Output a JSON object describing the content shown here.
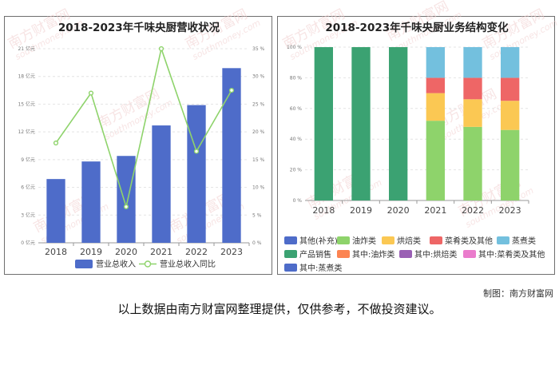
{
  "watermark": {
    "site_name": "南方财富网",
    "url": "southmoney.com"
  },
  "chart_data": [
    {
      "type": "bar+line",
      "title": "2018-2023年千味央厨营收状况",
      "categories": [
        "2018",
        "2019",
        "2020",
        "2021",
        "2022",
        "2023"
      ],
      "series": [
        {
          "name": "营业总收入",
          "kind": "bar",
          "axis": "left",
          "color": "#4e6cc9",
          "values": [
            6.9,
            8.8,
            9.4,
            12.7,
            14.9,
            18.9
          ]
        },
        {
          "name": "营业总收入同比",
          "kind": "line",
          "axis": "right",
          "color": "#8ed36b",
          "values": [
            18.0,
            27.0,
            6.5,
            35.0,
            16.5,
            27.5
          ]
        }
      ],
      "left_axis": {
        "ticks": [
          "0 亿元",
          "3 亿元",
          "6 亿元",
          "9 亿元",
          "12 亿元",
          "15 亿元",
          "18 亿元",
          "21 亿元"
        ],
        "ylim": [
          0,
          21
        ]
      },
      "right_axis": {
        "ticks": [
          "0 %",
          "5 %",
          "10 %",
          "15 %",
          "20 %",
          "25 %",
          "30 %",
          "35 %"
        ],
        "ylim": [
          0,
          35
        ]
      },
      "legend_position": "bottom"
    },
    {
      "type": "stacked-bar",
      "title": "2018-2023年千味央厨业务结构变化",
      "categories": [
        "2018",
        "2019",
        "2020",
        "2021",
        "2022",
        "2023"
      ],
      "y_ticks": [
        "0 %",
        "20 %",
        "40 %",
        "60 %",
        "80 %",
        "100 %"
      ],
      "ylim": [
        0,
        100
      ],
      "series": [
        {
          "name": "其他(补充)",
          "color": "#4e6cc9",
          "values": [
            0,
            0,
            0,
            0,
            0,
            0
          ]
        },
        {
          "name": "油炸类",
          "color": "#8ed36b",
          "values": [
            0,
            0,
            0,
            52,
            48,
            46
          ]
        },
        {
          "name": "烘焙类",
          "color": "#fbc853",
          "values": [
            0,
            0,
            0,
            18,
            18,
            19
          ]
        },
        {
          "name": "菜肴类及其他",
          "color": "#ee6666",
          "values": [
            0,
            0,
            0,
            10,
            14,
            15
          ]
        },
        {
          "name": "蒸煮类",
          "color": "#73c0de",
          "values": [
            0,
            0,
            0,
            20,
            20,
            20
          ]
        },
        {
          "name": "产品销售",
          "color": "#3ba272",
          "values": [
            100,
            100,
            100,
            0,
            0,
            0
          ]
        },
        {
          "name": "其中:油炸类",
          "color": "#fc8452",
          "values": [
            0,
            0,
            0,
            0,
            0,
            0
          ]
        },
        {
          "name": "其中:烘焙类",
          "color": "#9a60b4",
          "values": [
            0,
            0,
            0,
            0,
            0,
            0
          ]
        },
        {
          "name": "其中:菜肴类及其他",
          "color": "#ea7ccc",
          "values": [
            0,
            0,
            0,
            0,
            0,
            0
          ]
        },
        {
          "name": "其中:蒸煮类",
          "color": "#4e6cc9",
          "values": [
            0,
            0,
            0,
            0,
            0,
            0
          ]
        }
      ],
      "legend_position": "bottom"
    }
  ],
  "credit": "制图：南方财富网",
  "disclaimer": "以上数据由南方财富网整理提供，仅供参考，不做投资建议。"
}
